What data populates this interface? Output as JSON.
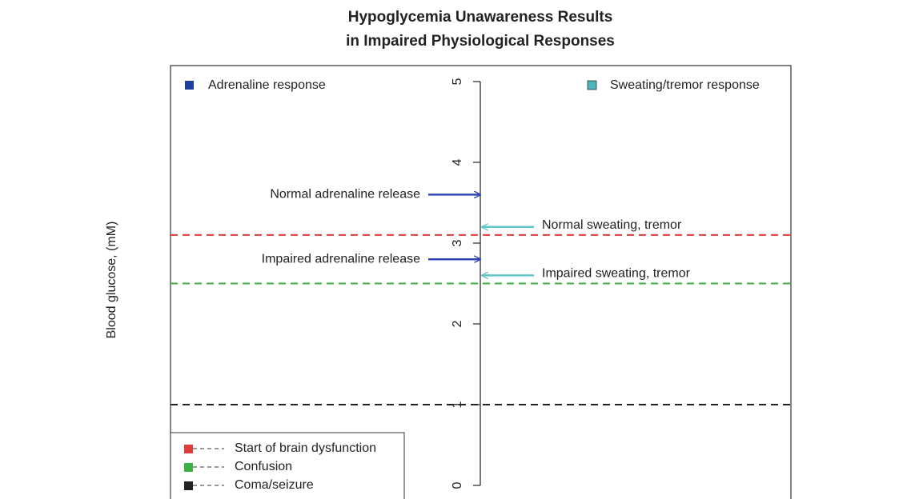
{
  "chart_data": {
    "type": "line",
    "title": [
      "Hypoglycemia Unawareness Results",
      "in Impaired Physiological Responses"
    ],
    "y_label": "Blood glucose, (mM)",
    "ylim": [
      0,
      5
    ],
    "yticks": [
      0,
      1,
      2,
      3,
      4,
      5
    ],
    "reference_lines": [
      {
        "name": "Start of brain dysfunction",
        "color": "#e03c3c",
        "value": 3.1
      },
      {
        "name": "Confusion",
        "color": "#3cb043",
        "value": 2.5
      },
      {
        "name": "Coma/seizure",
        "color": "#222222",
        "value": 1.0
      }
    ],
    "series": [
      {
        "name": "Adrenaline response",
        "color": "#2e46b8",
        "legend_color": "#1f3f9f",
        "side": "left",
        "labels": [
          "Normal adrenaline release",
          "Impaired adrenaline release"
        ],
        "values": [
          3.6,
          2.8
        ]
      },
      {
        "name": "Sweating/tremor response",
        "color": "#62c6cf",
        "legend_color": "#48b6bf",
        "side": "right",
        "labels": [
          "Normal sweating, tremor",
          "Impaired sweating, tremor"
        ],
        "values": [
          3.2,
          2.6
        ]
      }
    ]
  }
}
